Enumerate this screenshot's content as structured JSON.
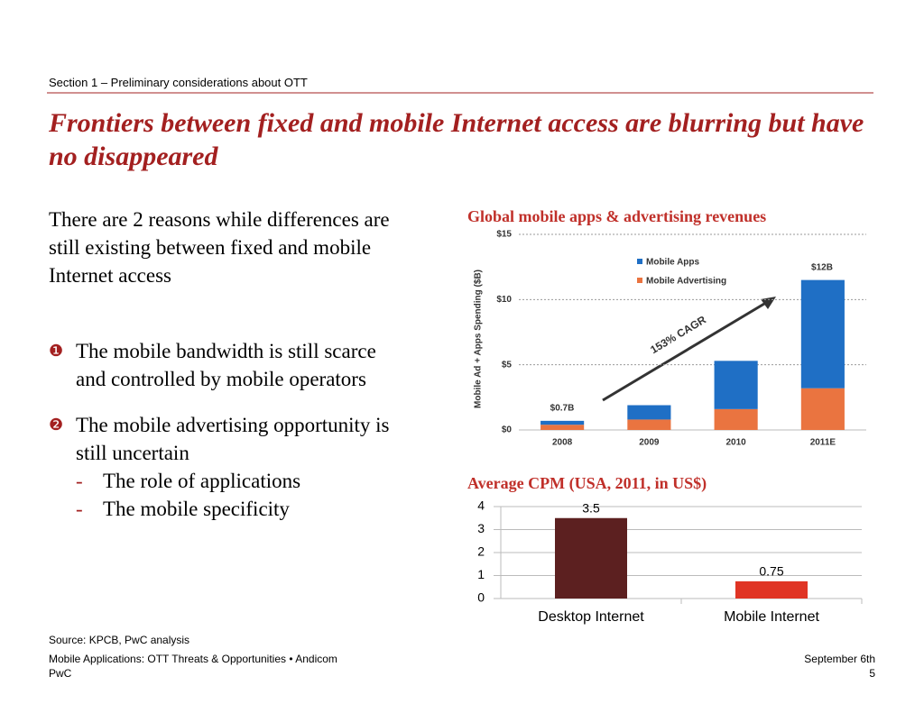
{
  "section": "Section 1 – Preliminary considerations about OTT",
  "title": "Frontiers between fixed and mobile Internet access are blurring but have no disappeared",
  "intro": "There are 2 reasons while differences are still existing between fixed and mobile Internet access",
  "bullets": [
    {
      "marker": "❶",
      "text": "The mobile bandwidth is still scarce and controlled by mobile operators",
      "sub": []
    },
    {
      "marker": "❷",
      "text": "The mobile advertising opportunity is still uncertain",
      "sub": [
        {
          "marker": "-",
          "text": "The role of applications"
        },
        {
          "marker": "-",
          "text": "The mobile specificity"
        }
      ]
    }
  ],
  "chart_data": [
    {
      "type": "stacked_bar",
      "title": "Global mobile apps & advertising revenues",
      "y_label": "Mobile Ad + Apps Spending ($B)",
      "categories": [
        "2008",
        "2009",
        "2010",
        "2011E"
      ],
      "series": [
        {
          "name": "Mobile Apps",
          "color": "#1f6fc5",
          "values": [
            0.3,
            1.1,
            3.7,
            8.3
          ]
        },
        {
          "name": "Mobile Advertising",
          "color": "#ea7440",
          "values": [
            0.4,
            0.8,
            1.6,
            3.2
          ]
        }
      ],
      "ylim": [
        0,
        15
      ],
      "yticks": [
        {
          "value": 0,
          "label": "$0"
        },
        {
          "value": 5,
          "label": "$5"
        },
        {
          "value": 10,
          "label": "$10"
        },
        {
          "value": 15,
          "label": "$15"
        }
      ],
      "grid": true,
      "annotations": [
        "$0.7B",
        "$12B",
        "153% CAGR"
      ]
    },
    {
      "type": "bar",
      "title": "Average CPM (USA, 2011, in US$)",
      "categories": [
        "Desktop Internet",
        "Mobile Internet"
      ],
      "values": [
        3.5,
        0.75
      ],
      "colors": [
        "#5c2020",
        "#e03424"
      ],
      "ylim": [
        0,
        4
      ],
      "yticks": [
        0,
        1,
        2,
        3,
        4
      ],
      "grid": true
    }
  ],
  "source": "Source: KPCB, PwC analysis",
  "footer": {
    "left": "Mobile Applications: OTT Threats & Opportunities • Andicom",
    "company": "PwC",
    "date": "September 6th",
    "page": "5"
  }
}
